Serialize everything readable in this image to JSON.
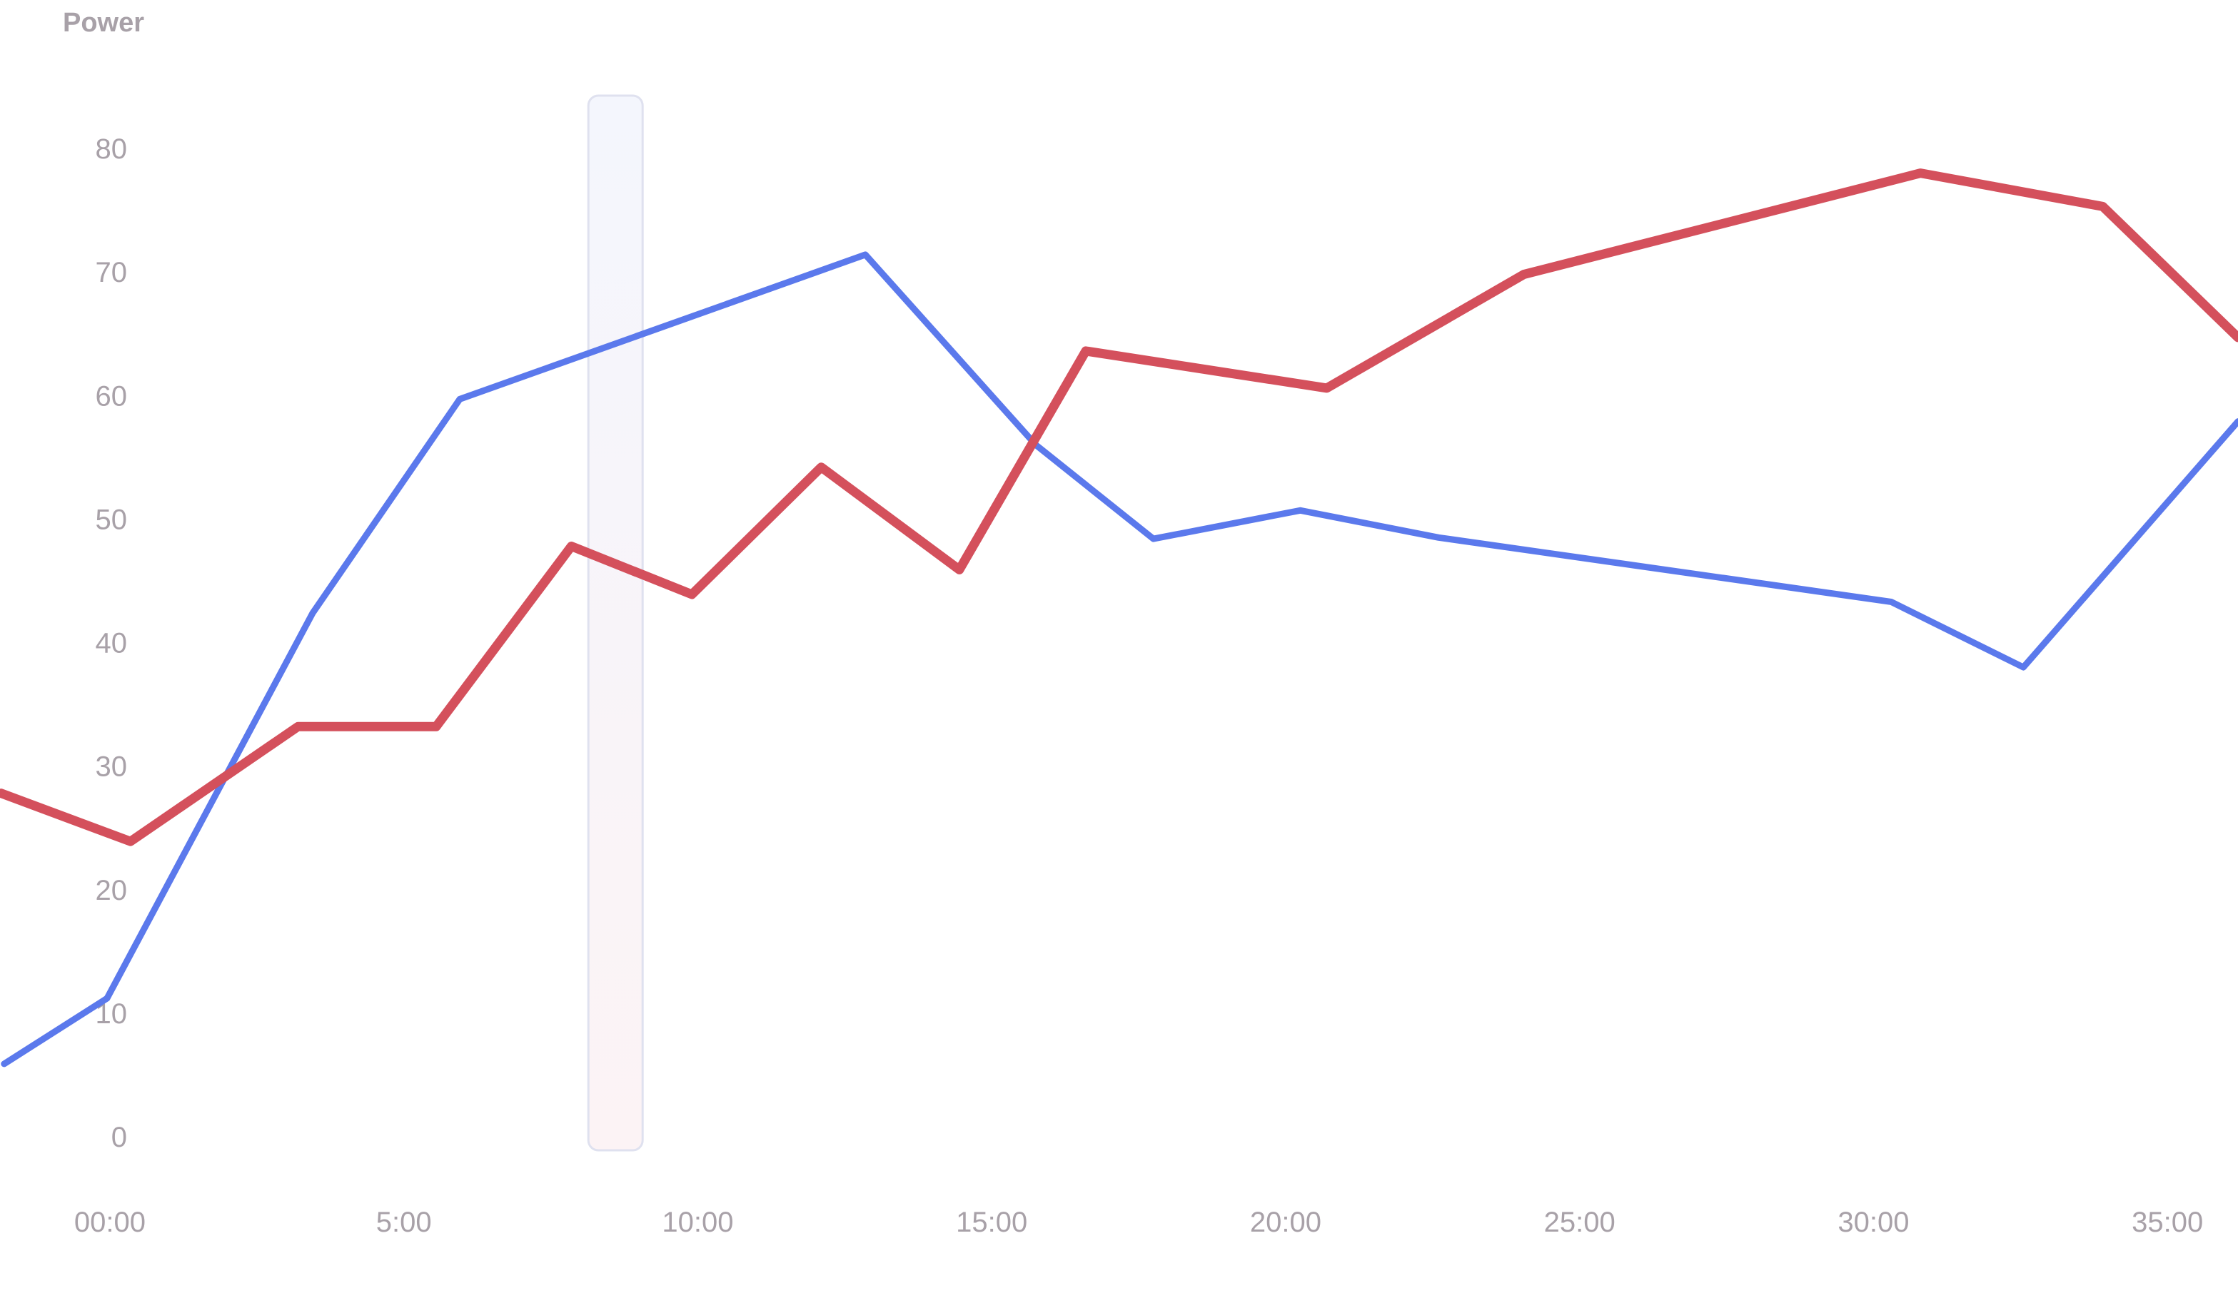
{
  "chart_data": {
    "type": "line",
    "ylabel": "Power",
    "xlabel": "",
    "ylim": [
      0,
      80
    ],
    "xlim": [
      -1.87,
      36.2
    ],
    "y_ticks": [
      0,
      10,
      20,
      30,
      40,
      50,
      60,
      70,
      80
    ],
    "x_ticks": [
      0,
      5,
      10,
      15,
      20,
      25,
      30,
      35
    ],
    "x_tick_labels": [
      "00:00",
      "5:00",
      "10:00",
      "15:00",
      "20:00",
      "25:00",
      "30:00",
      "35:00"
    ],
    "grid": false,
    "legend": "none",
    "cursor": {
      "x": 8.6,
      "color": "#dfe1ef"
    },
    "series": [
      {
        "color": "#5b79ec",
        "points": [
          {
            "x": -1.8,
            "y": 5.9
          },
          {
            "x": -0.05,
            "y": 11.2
          },
          {
            "x": 3.45,
            "y": 42.4
          },
          {
            "x": 5.95,
            "y": 59.7
          },
          {
            "x": 12.85,
            "y": 71.4
          },
          {
            "x": 15.75,
            "y": 56.0
          },
          {
            "x": 17.75,
            "y": 48.4
          },
          {
            "x": 20.25,
            "y": 50.7
          },
          {
            "x": 22.6,
            "y": 48.5
          },
          {
            "x": 30.3,
            "y": 43.3
          },
          {
            "x": 32.55,
            "y": 38.0
          },
          {
            "x": 36.2,
            "y": 57.9
          }
        ]
      },
      {
        "color": "#d4505c",
        "points": [
          {
            "x": -1.85,
            "y": 27.8
          },
          {
            "x": 0.35,
            "y": 23.9
          },
          {
            "x": 3.2,
            "y": 33.2
          },
          {
            "x": 5.55,
            "y": 33.2
          },
          {
            "x": 7.85,
            "y": 47.8
          },
          {
            "x": 9.9,
            "y": 43.9
          },
          {
            "x": 12.1,
            "y": 54.2
          },
          {
            "x": 14.45,
            "y": 45.9
          },
          {
            "x": 16.6,
            "y": 63.6
          },
          {
            "x": 20.7,
            "y": 60.6
          },
          {
            "x": 24.05,
            "y": 69.8
          },
          {
            "x": 30.8,
            "y": 78.0
          },
          {
            "x": 33.9,
            "y": 75.3
          },
          {
            "x": 36.2,
            "y": 64.7
          }
        ]
      }
    ]
  }
}
